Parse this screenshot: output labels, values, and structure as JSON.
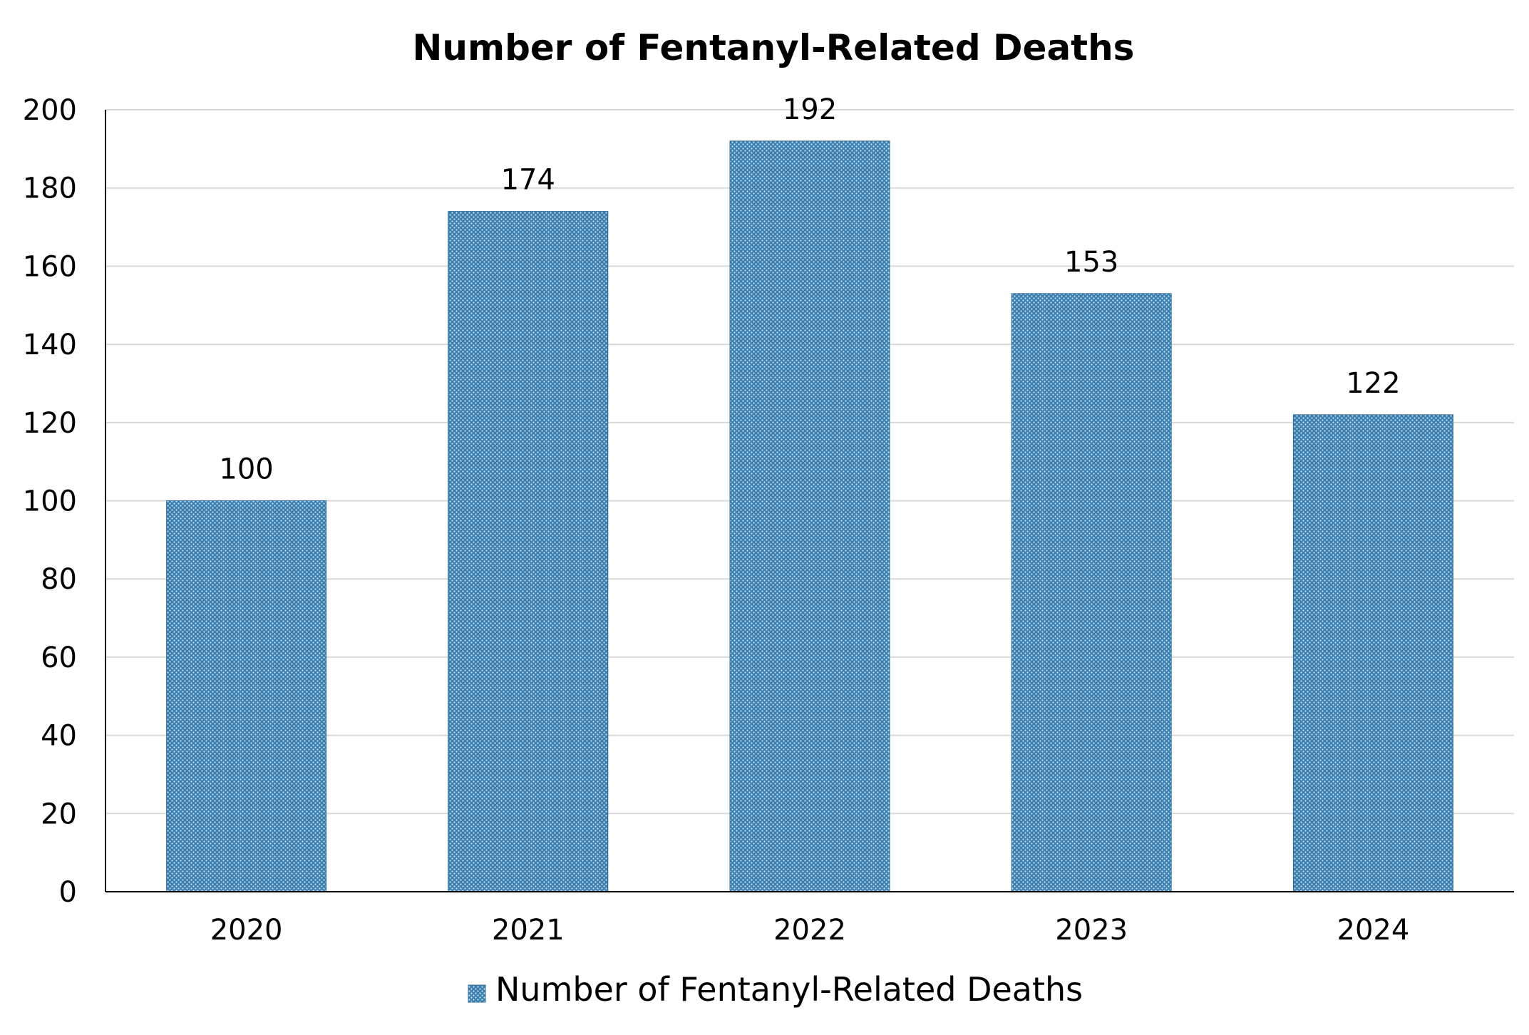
{
  "chart_data": {
    "type": "bar",
    "title": "Number of Fentanyl-Related Deaths",
    "xlabel": "",
    "ylabel": "",
    "categories": [
      "2020",
      "2021",
      "2022",
      "2023",
      "2024"
    ],
    "series": [
      {
        "name": "Number of Fentanyl-Related Deaths",
        "values": [
          100,
          174,
          192,
          153,
          122
        ],
        "color": "#3a7fb0"
      }
    ],
    "data_labels": [
      "100",
      "174",
      "192",
      "153",
      "122"
    ],
    "y_ticks": [
      "0",
      "20",
      "40",
      "60",
      "80",
      "100",
      "120",
      "140",
      "160",
      "180",
      "200"
    ],
    "ylim": [
      0,
      200
    ],
    "grid": true,
    "legend_position": "bottom",
    "bar_fill": "dotted pattern"
  }
}
